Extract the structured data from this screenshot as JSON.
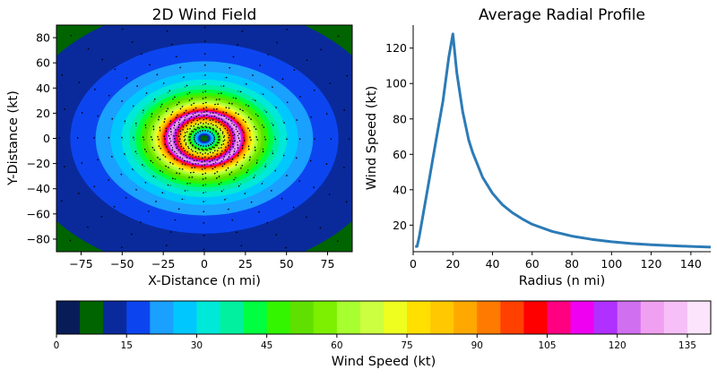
{
  "chart_data": [
    {
      "type": "heatmap",
      "title": "2D Wind Field",
      "xlabel": "X-Distance (n mi)",
      "ylabel": "Y-Distance (kt)",
      "xlim": [
        -90,
        90
      ],
      "ylim": [
        -90,
        90
      ],
      "xticks": [
        -75,
        -50,
        -25,
        0,
        25,
        50,
        75
      ],
      "yticks": [
        -80,
        -60,
        -40,
        -20,
        0,
        20,
        40,
        60,
        80
      ],
      "center": [
        0,
        0
      ],
      "rmw": 20,
      "vmax": 128,
      "grid": false
    },
    {
      "type": "line",
      "title": "Average Radial Profile",
      "xlabel": "Radius (n mi)",
      "ylabel": "Wind Speed (kt)",
      "xlim": [
        0,
        150
      ],
      "ylim": [
        5,
        133
      ],
      "xticks": [
        0,
        20,
        40,
        60,
        80,
        100,
        120,
        140
      ],
      "yticks": [
        20,
        40,
        60,
        80,
        100,
        120
      ],
      "grid": false,
      "series": [
        {
          "color": "#2c7bb6",
          "x": [
            1,
            2,
            3,
            5,
            8,
            10,
            12,
            15,
            18,
            20,
            22,
            25,
            28,
            30,
            35,
            40,
            45,
            50,
            55,
            60,
            70,
            80,
            90,
            100,
            110,
            120,
            130,
            140,
            150
          ],
          "y": [
            8,
            8,
            13,
            26,
            45,
            58,
            71,
            90,
            115,
            128,
            106,
            84,
            68,
            61,
            47,
            38,
            31.5,
            27,
            23.5,
            20.5,
            16.5,
            13.8,
            12,
            10.6,
            9.6,
            8.9,
            8.4,
            8,
            7.6
          ]
        }
      ]
    },
    {
      "type": "colorbar",
      "label": "Wind Speed (kt)",
      "vmin": 0,
      "vmax": 140,
      "step": 5,
      "ticks": [
        0,
        15,
        30,
        45,
        60,
        75,
        90,
        105,
        120,
        135
      ],
      "colors": [
        "#081d58",
        "#006400",
        "#0a2a9c",
        "#0c45f0",
        "#1aa0ff",
        "#00c8ff",
        "#00e8d8",
        "#00f0a0",
        "#00ff40",
        "#33f500",
        "#60e000",
        "#7cf000",
        "#a8ff30",
        "#ccff40",
        "#eeff20",
        "#ffe000",
        "#ffc800",
        "#ffa800",
        "#ff7a00",
        "#ff4000",
        "#ff0000",
        "#ff0080",
        "#f000f0",
        "#b030ff",
        "#d070f0",
        "#f0a0f0",
        "#f7bff7",
        "#fde4fd"
      ]
    }
  ]
}
